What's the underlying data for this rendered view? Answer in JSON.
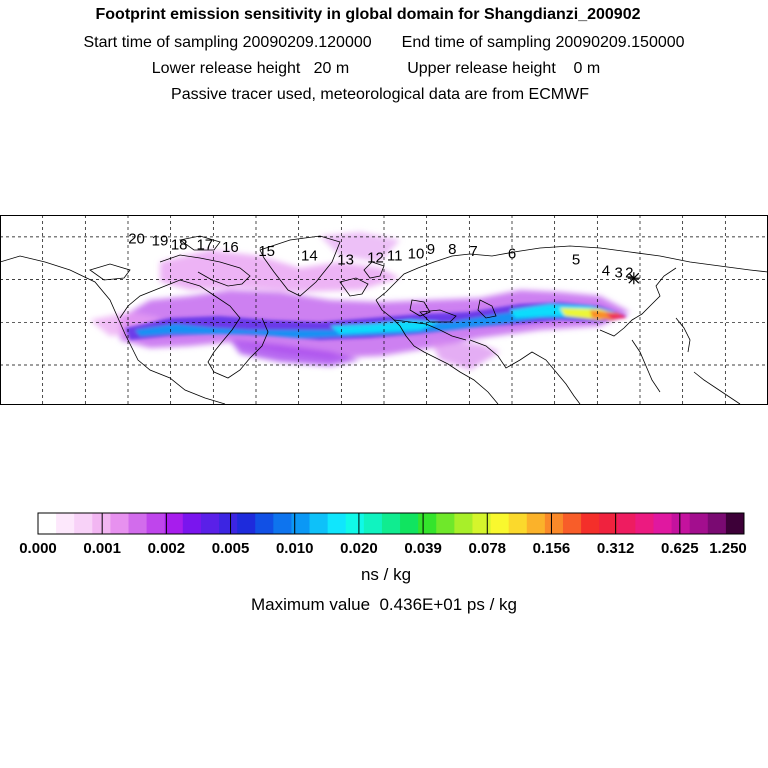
{
  "title": "Footprint emission sensitivity in global domain for Shangdianzi_200902",
  "start_label": "Start time of sampling 20090209.120000",
  "end_label": "End time of sampling 20090209.150000",
  "lower_label": "Lower release height   20 m",
  "upper_label": "Upper release height    0 m",
  "tracer_line": "Passive tracer used, meteorological data are from ECMWF",
  "colorbar": {
    "colors": [
      "#ffffff",
      "#fde8fc",
      "#f8d2f8",
      "#f2b6f2",
      "#e791ef",
      "#d26cec",
      "#bf45ec",
      "#a71ded",
      "#7a15ee",
      "#5a20e8",
      "#3c25e2",
      "#1e2bdc",
      "#1150e5",
      "#0e74ee",
      "#0b98f5",
      "#0ec1f9",
      "#10e6fd",
      "#10f9e8",
      "#10f3c0",
      "#10ec90",
      "#10e460",
      "#34e42c",
      "#6fe82a",
      "#a8ef29",
      "#d5f52c",
      "#f9f82e",
      "#fbd92c",
      "#fbb22a",
      "#fa8929",
      "#f85d29",
      "#f42f2a",
      "#f0223e",
      "#ee1c60",
      "#ec1a80",
      "#e018a0",
      "#c4129e",
      "#a30e8e",
      "#7a0a72",
      "#3d0038"
    ],
    "tick_labels": [
      "0.000",
      "0.001",
      "0.002",
      "0.005",
      "0.010",
      "0.020",
      "0.039",
      "0.078",
      "0.156",
      "0.312",
      "0.625",
      "1.250"
    ]
  },
  "unit_label": "ns / kg",
  "max_value_label": "Maximum value  0.436E+01 ps / kg",
  "trajectory_labels": [
    {
      "text": "20",
      "lon": -116,
      "lat": 57
    },
    {
      "text": "19",
      "lon": -105,
      "lat": 56
    },
    {
      "text": "18",
      "lon": -96,
      "lat": 54
    },
    {
      "text": "17",
      "lon": -84,
      "lat": 54
    },
    {
      "text": "16",
      "lon": -72,
      "lat": 53
    },
    {
      "text": "15",
      "lon": -55,
      "lat": 51
    },
    {
      "text": "14",
      "lon": -35,
      "lat": 49
    },
    {
      "text": "13",
      "lon": -18,
      "lat": 47
    },
    {
      "text": "12",
      "lon": -4,
      "lat": 48
    },
    {
      "text": "11",
      "lon": 5,
      "lat": 49
    },
    {
      "text": "10",
      "lon": 15,
      "lat": 50
    },
    {
      "text": "9",
      "lon": 22,
      "lat": 52
    },
    {
      "text": "8",
      "lon": 32,
      "lat": 52
    },
    {
      "text": "7",
      "lon": 42,
      "lat": 51
    },
    {
      "text": "6",
      "lon": 60,
      "lat": 50
    },
    {
      "text": "5",
      "lon": 90,
      "lat": 47
    },
    {
      "text": "4",
      "lon": 104,
      "lat": 42
    },
    {
      "text": "3",
      "lon": 110,
      "lat": 41
    },
    {
      "text": "2",
      "lon": 115,
      "lat": 41
    }
  ],
  "receptor": {
    "lon": 117.1,
    "lat": 40.65
  }
}
